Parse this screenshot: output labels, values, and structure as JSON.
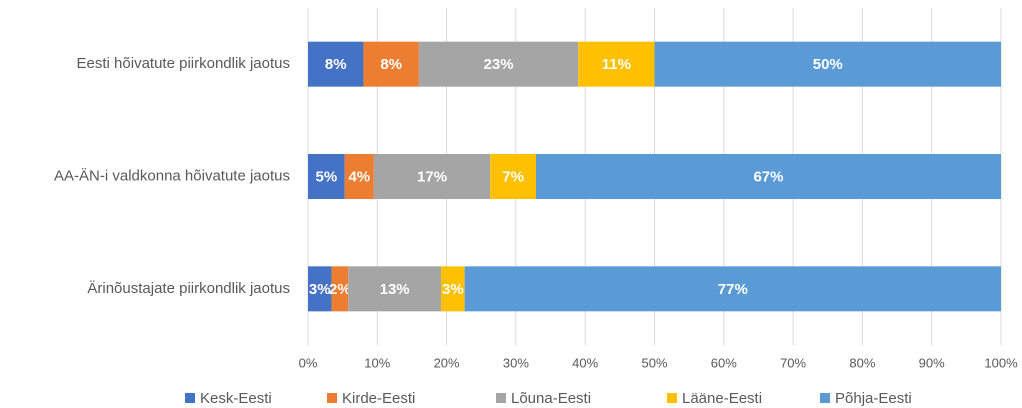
{
  "chart_data": {
    "type": "stacked_barh",
    "categories": [
      "Eesti hõivatute piirkondlik jaotus",
      "AA-ÄN-i valdkonna hõivatute jaotus",
      "Ärinõustajate piirkondlik jaotus"
    ],
    "series": [
      {
        "name": "Kesk-Eesti",
        "color": "#4472c4",
        "values": [
          8,
          5.3,
          3.4
        ],
        "value_labels": [
          "8%",
          "5%",
          "3%"
        ]
      },
      {
        "name": "Kirde-Eesti",
        "color": "#ed7d31",
        "values": [
          8,
          4.2,
          2.4
        ],
        "value_labels": [
          "8%",
          "4%",
          "2%"
        ]
      },
      {
        "name": "Lõuna-Eesti",
        "color": "#a5a5a5",
        "values": [
          23,
          16.8,
          13.4
        ],
        "value_labels": [
          "23%",
          "17%",
          "13%"
        ]
      },
      {
        "name": "Lääne-Eesti",
        "color": "#ffc000",
        "values": [
          11,
          6.6,
          3.4
        ],
        "value_labels": [
          "11%",
          "7%",
          "3%"
        ]
      },
      {
        "name": "Põhja-Eesti",
        "color": "#5b9bd5",
        "values": [
          50,
          67.1,
          77.4
        ],
        "value_labels": [
          "50%",
          "67%",
          "77%"
        ]
      }
    ],
    "xlim": [
      0,
      100
    ],
    "xticks": [
      {
        "value": 0,
        "label": "0%"
      },
      {
        "value": 10,
        "label": "10%"
      },
      {
        "value": 20,
        "label": "20%"
      },
      {
        "value": 30,
        "label": "30%"
      },
      {
        "value": 40,
        "label": "40%"
      },
      {
        "value": 50,
        "label": "50%"
      },
      {
        "value": 60,
        "label": "60%"
      },
      {
        "value": 70,
        "label": "70%"
      },
      {
        "value": 80,
        "label": "80%"
      },
      {
        "value": 90,
        "label": "90%"
      },
      {
        "value": 100,
        "label": "100%"
      }
    ],
    "grid": true,
    "legend": "bottom"
  }
}
